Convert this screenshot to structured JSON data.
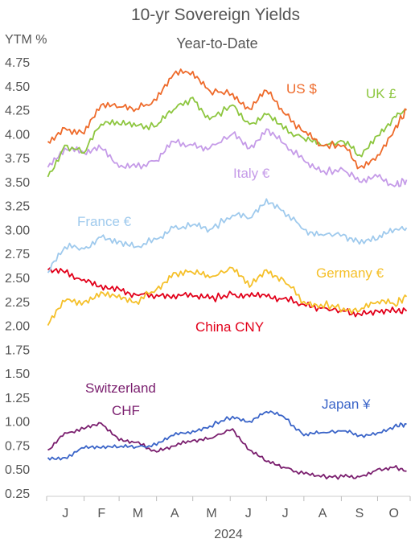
{
  "chart_data": {
    "type": "line",
    "title": "10-yr Sovereign Yields",
    "subtitle": "Year-to-Date",
    "ylabel": "YTM %",
    "xlabel": "2024",
    "ylim": [
      0.25,
      4.75
    ],
    "yticks": [
      "4.75",
      "4.50",
      "4.25",
      "4.00",
      "3.75",
      "3.50",
      "3.25",
      "3.00",
      "2.75",
      "2.50",
      "2.25",
      "2.00",
      "1.75",
      "1.50",
      "1.25",
      "1.00",
      "0.75",
      "0.50",
      "0.25"
    ],
    "xticks": [
      "J",
      "F",
      "M",
      "A",
      "M",
      "J",
      "J",
      "A",
      "S",
      "O"
    ],
    "x": [
      "2024-01-02",
      "2024-01-16",
      "2024-02-01",
      "2024-02-15",
      "2024-03-01",
      "2024-03-15",
      "2024-04-01",
      "2024-04-15",
      "2024-05-01",
      "2024-05-15",
      "2024-06-03",
      "2024-06-17",
      "2024-07-01",
      "2024-07-15",
      "2024-08-01",
      "2024-08-15",
      "2024-09-03",
      "2024-09-16",
      "2024-10-01",
      "2024-10-15",
      "2024-10-25"
    ],
    "series": [
      {
        "name": "US $",
        "color": "#ee6a2a",
        "values": [
          3.92,
          4.06,
          4.0,
          4.3,
          4.28,
          4.26,
          4.35,
          4.62,
          4.65,
          4.45,
          4.42,
          4.26,
          4.45,
          4.22,
          4.02,
          3.88,
          3.88,
          3.65,
          3.78,
          4.05,
          4.25
        ]
      },
      {
        "name": "UK £",
        "color": "#8dc63f",
        "values": [
          3.55,
          3.88,
          3.8,
          4.1,
          4.1,
          4.08,
          4.08,
          4.25,
          4.38,
          4.15,
          4.3,
          4.1,
          4.2,
          4.05,
          3.95,
          3.88,
          3.92,
          3.78,
          3.98,
          4.18,
          4.25
        ]
      },
      {
        "name": "Italy €",
        "color": "#c59be8",
        "values": [
          3.65,
          3.85,
          3.8,
          3.85,
          3.65,
          3.65,
          3.72,
          3.92,
          3.88,
          3.85,
          4.0,
          3.85,
          4.05,
          3.9,
          3.72,
          3.6,
          3.62,
          3.5,
          3.55,
          3.45,
          3.52
        ]
      },
      {
        "name": "France €",
        "color": "#9fcaed",
        "values": [
          2.55,
          2.82,
          2.8,
          2.92,
          2.88,
          2.82,
          2.9,
          3.02,
          3.05,
          3.0,
          3.15,
          3.12,
          3.32,
          3.2,
          3.0,
          2.95,
          2.95,
          2.85,
          2.9,
          3.0,
          3.02
        ]
      },
      {
        "name": "Germany €",
        "color": "#f5c02a",
        "values": [
          2.0,
          2.25,
          2.25,
          2.35,
          2.32,
          2.25,
          2.38,
          2.55,
          2.55,
          2.5,
          2.6,
          2.4,
          2.58,
          2.48,
          2.25,
          2.22,
          2.18,
          2.15,
          2.25,
          2.22,
          2.3
        ]
      },
      {
        "name": "China CNY",
        "color": "#e2001a",
        "values": [
          2.58,
          2.55,
          2.48,
          2.42,
          2.38,
          2.32,
          2.32,
          2.32,
          2.3,
          2.28,
          2.32,
          2.3,
          2.3,
          2.28,
          2.22,
          2.18,
          2.15,
          2.12,
          2.15,
          2.15,
          2.15
        ]
      },
      {
        "name": "Switzerland CHF",
        "color": "#7a1e6e",
        "values": [
          0.7,
          0.88,
          0.92,
          0.98,
          0.8,
          0.78,
          0.68,
          0.74,
          0.8,
          0.82,
          0.92,
          0.7,
          0.58,
          0.52,
          0.45,
          0.42,
          0.42,
          0.42,
          0.5,
          0.52,
          0.48
        ]
      },
      {
        "name": "Japan ¥",
        "color": "#3a64c8",
        "values": [
          0.62,
          0.62,
          0.72,
          0.72,
          0.73,
          0.73,
          0.75,
          0.85,
          0.9,
          0.95,
          1.05,
          1.0,
          1.1,
          1.05,
          0.85,
          0.88,
          0.9,
          0.85,
          0.88,
          0.95,
          0.97
        ]
      }
    ],
    "labels": {
      "us": "US $",
      "uk": "UK £",
      "italy": "Italy €",
      "france": "France €",
      "germany": "Germany €",
      "china": "China CNY",
      "switzerland_1": "Switzerland",
      "switzerland_2": "CHF",
      "japan": "Japan ¥"
    },
    "grid": false
  }
}
